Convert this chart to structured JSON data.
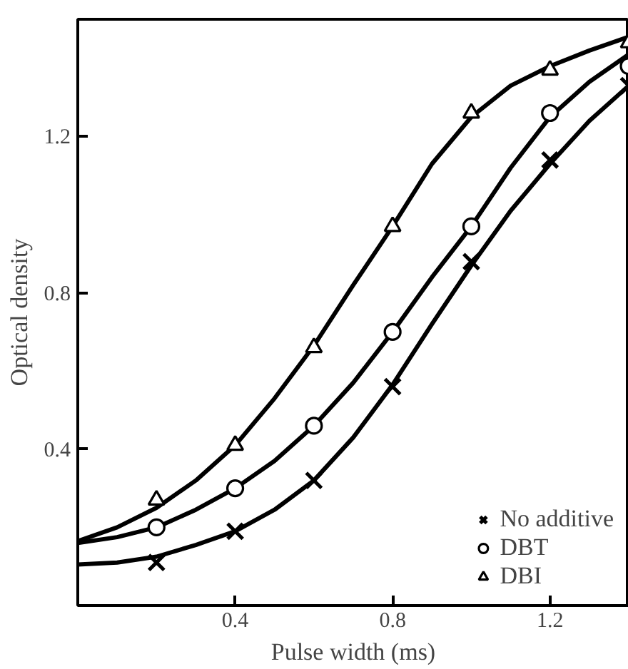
{
  "chart_data": {
    "type": "scatter",
    "xlabel": "Pulse width (ms)",
    "ylabel": "Optical density",
    "xlim": [
      0,
      1.4
    ],
    "ylim": [
      0,
      1.5
    ],
    "xticks": [
      0.4,
      0.8,
      1.2
    ],
    "yticks": [
      0.4,
      0.8,
      1.2
    ],
    "grid": false,
    "legend": "bottom right",
    "series": [
      {
        "name": "No additive",
        "color": "#000000",
        "marker": "cross",
        "x": [
          0.2,
          0.4,
          0.6,
          0.8,
          1.0,
          1.2,
          1.4
        ],
        "values": [
          0.11,
          0.19,
          0.32,
          0.56,
          0.88,
          1.14,
          1.33
        ]
      },
      {
        "name": "DBT",
        "color": "#000000",
        "marker": "circle",
        "x": [
          0.2,
          0.4,
          0.6,
          0.8,
          1.0,
          1.2,
          1.4
        ],
        "values": [
          0.2,
          0.3,
          0.46,
          0.7,
          0.97,
          1.26,
          1.38
        ]
      },
      {
        "name": "DBI",
        "color": "#000000",
        "marker": "triangle",
        "x": [
          0.2,
          0.4,
          0.6,
          0.8,
          1.0,
          1.2,
          1.4
        ],
        "values": [
          0.27,
          0.41,
          0.66,
          0.97,
          1.26,
          1.37,
          1.44
        ]
      },
      {
        "type": "line",
        "color": "#000000",
        "x": [
          0,
          0.1,
          0.2,
          0.3,
          0.4,
          0.5,
          0.6,
          0.7,
          0.8,
          0.9,
          1.0,
          1.1,
          1.2,
          1.3,
          1.4
        ],
        "values": [
          0.105,
          0.11,
          0.125,
          0.155,
          0.19,
          0.245,
          0.32,
          0.43,
          0.565,
          0.72,
          0.87,
          1.01,
          1.13,
          1.24,
          1.33
        ]
      },
      {
        "type": "line",
        "color": "#000000",
        "x": [
          0,
          0.1,
          0.2,
          0.3,
          0.4,
          0.5,
          0.6,
          0.7,
          0.8,
          0.9,
          1.0,
          1.1,
          1.2,
          1.3,
          1.4
        ],
        "values": [
          0.16,
          0.175,
          0.2,
          0.245,
          0.3,
          0.37,
          0.46,
          0.57,
          0.7,
          0.84,
          0.97,
          1.12,
          1.25,
          1.34,
          1.41
        ]
      },
      {
        "type": "line",
        "color": "#000000",
        "x": [
          0,
          0.1,
          0.2,
          0.3,
          0.4,
          0.5,
          0.6,
          0.7,
          0.8,
          0.9,
          1.0,
          1.1,
          1.2,
          1.3,
          1.4
        ],
        "values": [
          0.165,
          0.2,
          0.25,
          0.32,
          0.41,
          0.53,
          0.665,
          0.82,
          0.97,
          1.13,
          1.25,
          1.33,
          1.38,
          1.42,
          1.455
        ]
      }
    ]
  }
}
